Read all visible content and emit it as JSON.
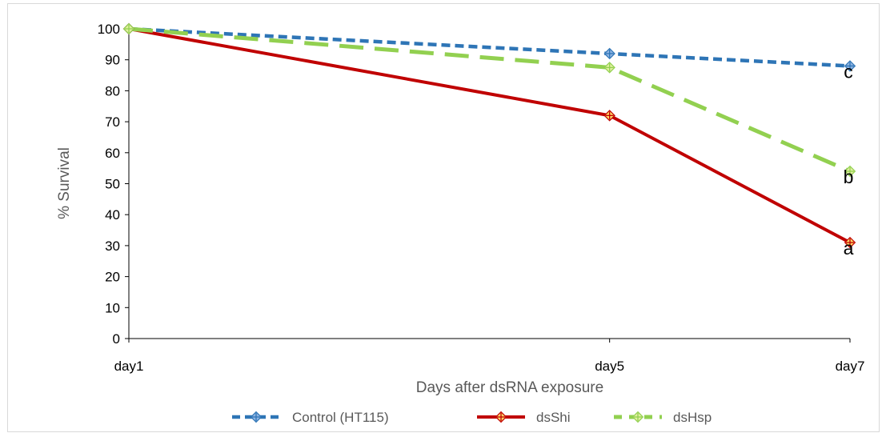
{
  "chart_data": {
    "type": "line",
    "title": "",
    "xlabel": "Days after dsRNA exposure",
    "ylabel": "% Survival",
    "ylim": [
      0,
      100
    ],
    "yticks": [
      0,
      10,
      20,
      30,
      40,
      50,
      60,
      70,
      80,
      90,
      100
    ],
    "categories": [
      "day1",
      "day5",
      "day7"
    ],
    "grid": false,
    "legend_position": "bottom",
    "series": [
      {
        "name": "Control (HT115)",
        "values": [
          100,
          92,
          88
        ],
        "color": "#2e75b6",
        "marker_color": "#8fb4e3",
        "dash": "short-dash",
        "annotation": "c"
      },
      {
        "name": "dsShi",
        "values": [
          100,
          72,
          31
        ],
        "color": "#c00000",
        "marker_color": "#ffd966",
        "dash": "solid",
        "annotation": "a"
      },
      {
        "name": "dsHsp",
        "values": [
          100,
          87.5,
          54
        ],
        "color": "#92d050",
        "marker_color": "#e2f0a0",
        "dash": "long-dash",
        "annotation": "b"
      }
    ]
  }
}
